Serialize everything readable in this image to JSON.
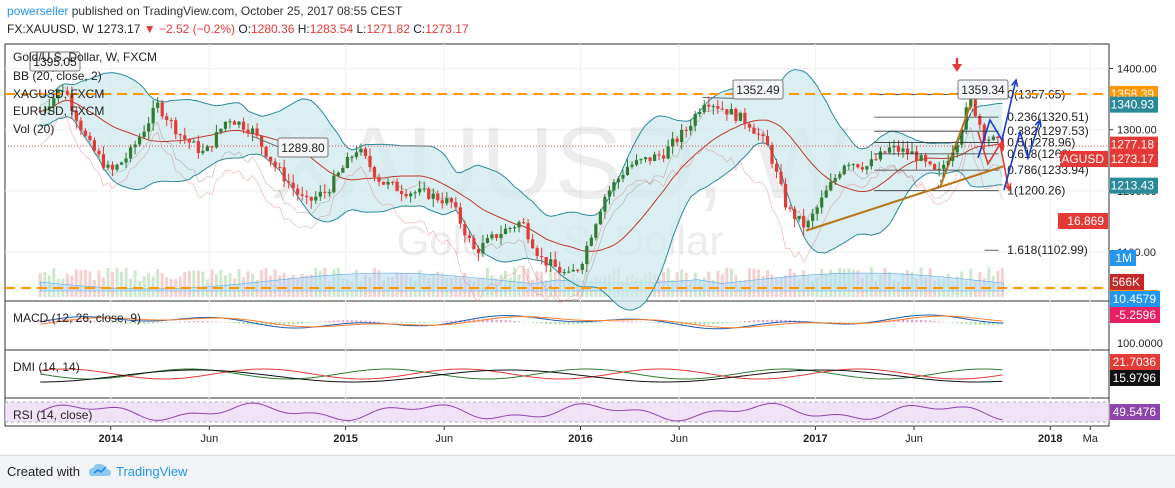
{
  "header": {
    "author": "powerseller",
    "published": "published on TradingView.com, October 25, 2017 08:55 CEST",
    "symbol": "FX:XAUUSD, W",
    "last": "1273.17",
    "change": "▼ −2.52 (−0.2%)",
    "open_label": "O:",
    "open": "1280.36",
    "high_label": "H:",
    "high": "1283.54",
    "low_label": "L:",
    "low": "1271.82",
    "close_label": "C:",
    "close": "1273.17"
  },
  "legend": {
    "title": "Gold/U.S. Dollar, W, FXCM",
    "items": [
      "BB (20, close, 2)",
      "XAGUSD, FXCM",
      "EURUSD, FXCM",
      "Vol (20)"
    ]
  },
  "watermark": {
    "symbol": "XAUUSD, W",
    "name": "Gold / U.S. Dollar"
  },
  "colors": {
    "up": "#2e7d32",
    "down": "#e53935",
    "bb_fill": "#cfe8ec",
    "bb_line": "#2a8a9a",
    "fib": "#333333",
    "dashed": "#ff9800",
    "trend": "#b8741a",
    "arrow_blue": "#1a3dcc",
    "arrow_red": "#e53935",
    "volume": "#b3d9f5",
    "macd": "#1e5cb3",
    "signal": "#ff7f2a",
    "rsi": "#8e44ad",
    "dmi_plus": "#2e7d32",
    "dmi_minus": "#e53935",
    "adx": "#111111"
  },
  "chart_data": [
    {
      "type": "line",
      "panel": "price",
      "title": "Gold/U.S. Dollar, W, FXCM",
      "x_ticks": [
        "2014",
        "Jun",
        "2015",
        "Jun",
        "2016",
        "Jun",
        "2017",
        "Jun",
        "2018",
        "Ma"
      ],
      "y_ticks": [
        "1400.00",
        "1300.00",
        "1200.00",
        "1100.00"
      ],
      "y_range": [
        1020,
        1440
      ],
      "close_path": [
        [
          2013.7,
          1330
        ],
        [
          2013.8,
          1370
        ],
        [
          2013.9,
          1280
        ],
        [
          2014.0,
          1230
        ],
        [
          2014.08,
          1260
        ],
        [
          2014.2,
          1340
        ],
        [
          2014.3,
          1290
        ],
        [
          2014.4,
          1260
        ],
        [
          2014.5,
          1320
        ],
        [
          2014.6,
          1300
        ],
        [
          2014.7,
          1240
        ],
        [
          2014.83,
          1180
        ],
        [
          2014.92,
          1200
        ],
        [
          2015.05,
          1270
        ],
        [
          2015.15,
          1215
        ],
        [
          2015.25,
          1200
        ],
        [
          2015.35,
          1195
        ],
        [
          2015.45,
          1180
        ],
        [
          2015.55,
          1100
        ],
        [
          2015.65,
          1130
        ],
        [
          2015.75,
          1150
        ],
        [
          2015.83,
          1090
        ],
        [
          2015.95,
          1060
        ],
        [
          2016.0,
          1080
        ],
        [
          2016.1,
          1190
        ],
        [
          2016.2,
          1240
        ],
        [
          2016.35,
          1260
        ],
        [
          2016.45,
          1300
        ],
        [
          2016.53,
          1350
        ],
        [
          2016.63,
          1330
        ],
        [
          2016.72,
          1310
        ],
        [
          2016.8,
          1270
        ],
        [
          2016.88,
          1170
        ],
        [
          2016.96,
          1140
        ],
        [
          2017.05,
          1200
        ],
        [
          2017.13,
          1250
        ],
        [
          2017.22,
          1240
        ],
        [
          2017.32,
          1270
        ],
        [
          2017.42,
          1260
        ],
        [
          2017.52,
          1225
        ],
        [
          2017.6,
          1280
        ],
        [
          2017.66,
          1350
        ],
        [
          2017.72,
          1290
        ],
        [
          2017.8,
          1273
        ]
      ],
      "xagusd_label": "XAGUSD",
      "xagusd_value": "16.869",
      "price_labels": [
        {
          "text": "1358.39",
          "color": "#ff9800"
        },
        {
          "text": "1340.93",
          "color": "#2a8a9a"
        },
        {
          "text": "1277.18",
          "color": "#e53935"
        },
        {
          "text": "1273.17",
          "color": "#e53935"
        },
        {
          "text": "1213.43",
          "color": "#2a8a9a"
        },
        {
          "text": "1M",
          "color": "#2196f3"
        },
        {
          "text": "566K",
          "color": "#c62828"
        },
        {
          "text": "1041.17",
          "color": "#ff9800"
        }
      ],
      "callouts": [
        "1395.05",
        "1289.80",
        "1352.49",
        "1359.34"
      ],
      "fib_levels": [
        {
          "ratio": "0",
          "price": "1357.65",
          "value": 1357.65
        },
        {
          "ratio": "0.236",
          "price": "1320.51",
          "value": 1320.51
        },
        {
          "ratio": "0.382",
          "price": "1297.53",
          "value": 1297.53
        },
        {
          "ratio": "0.5",
          "price": "1278.96",
          "value": 1278.96
        },
        {
          "ratio": "0.618",
          "price": "1260",
          "value": 1260.4
        },
        {
          "ratio": "0.786",
          "price": "1233.94",
          "value": 1233.94
        },
        {
          "ratio": "1",
          "price": "1200.26",
          "value": 1200.26
        },
        {
          "ratio": "1.618",
          "price": "1102.99",
          "value": 1102.99
        }
      ],
      "support_resistance": [
        1358.39,
        1041.17
      ]
    },
    {
      "type": "line",
      "panel": "macd",
      "title": "MACD (12, 26, close, 9)",
      "value_labels": [
        {
          "text": "10.4579",
          "color": "#2196f3"
        },
        {
          "text": "-5.2596",
          "color": "#e91e63"
        }
      ]
    },
    {
      "type": "line",
      "panel": "dmi",
      "title": "DMI (14, 14)",
      "y_ticks": [
        "100.0000"
      ],
      "value_labels": [
        {
          "text": "21.7036",
          "color": "#e53935"
        },
        {
          "text": "15.9796",
          "color": "#111111"
        }
      ]
    },
    {
      "type": "line",
      "panel": "rsi",
      "title": "RSI (14, close)",
      "value_labels": [
        {
          "text": "49.5476",
          "color": "#8e44ad"
        }
      ]
    }
  ],
  "footer": {
    "created_with": "Created with",
    "brand": "TradingView"
  }
}
